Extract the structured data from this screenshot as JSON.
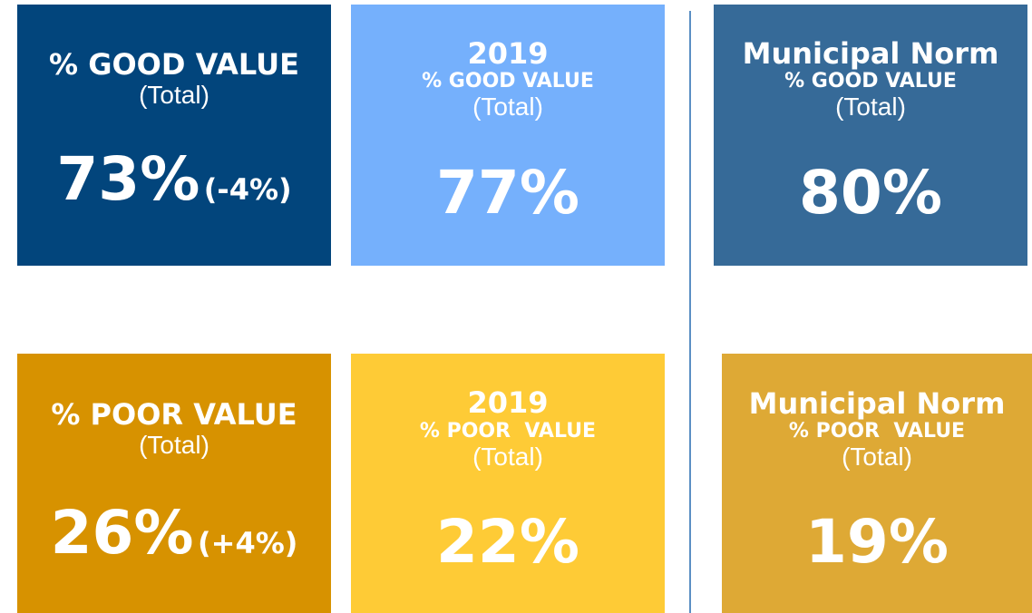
{
  "tiles": [
    {
      "label": "% GOOD VALUE",
      "note": "(Total)",
      "value": "73%",
      "change": "(-4%)"
    },
    {
      "title": "2019",
      "label": "% GOOD VALUE",
      "note": "(Total)",
      "value": "77%"
    },
    {
      "title": "Municipal Norm",
      "label": "% GOOD VALUE",
      "note": "(Total)",
      "value": "80%"
    },
    {
      "label": "% POOR VALUE",
      "note": "(Total)",
      "value": "26%",
      "change": "(+4%)"
    },
    {
      "title": "2019",
      "label": "% POOR  VALUE",
      "note": "(Total)",
      "value": "22%"
    },
    {
      "title": "Municipal Norm",
      "label": "% POOR  VALUE",
      "note": "(Total)",
      "value": "19%"
    }
  ]
}
